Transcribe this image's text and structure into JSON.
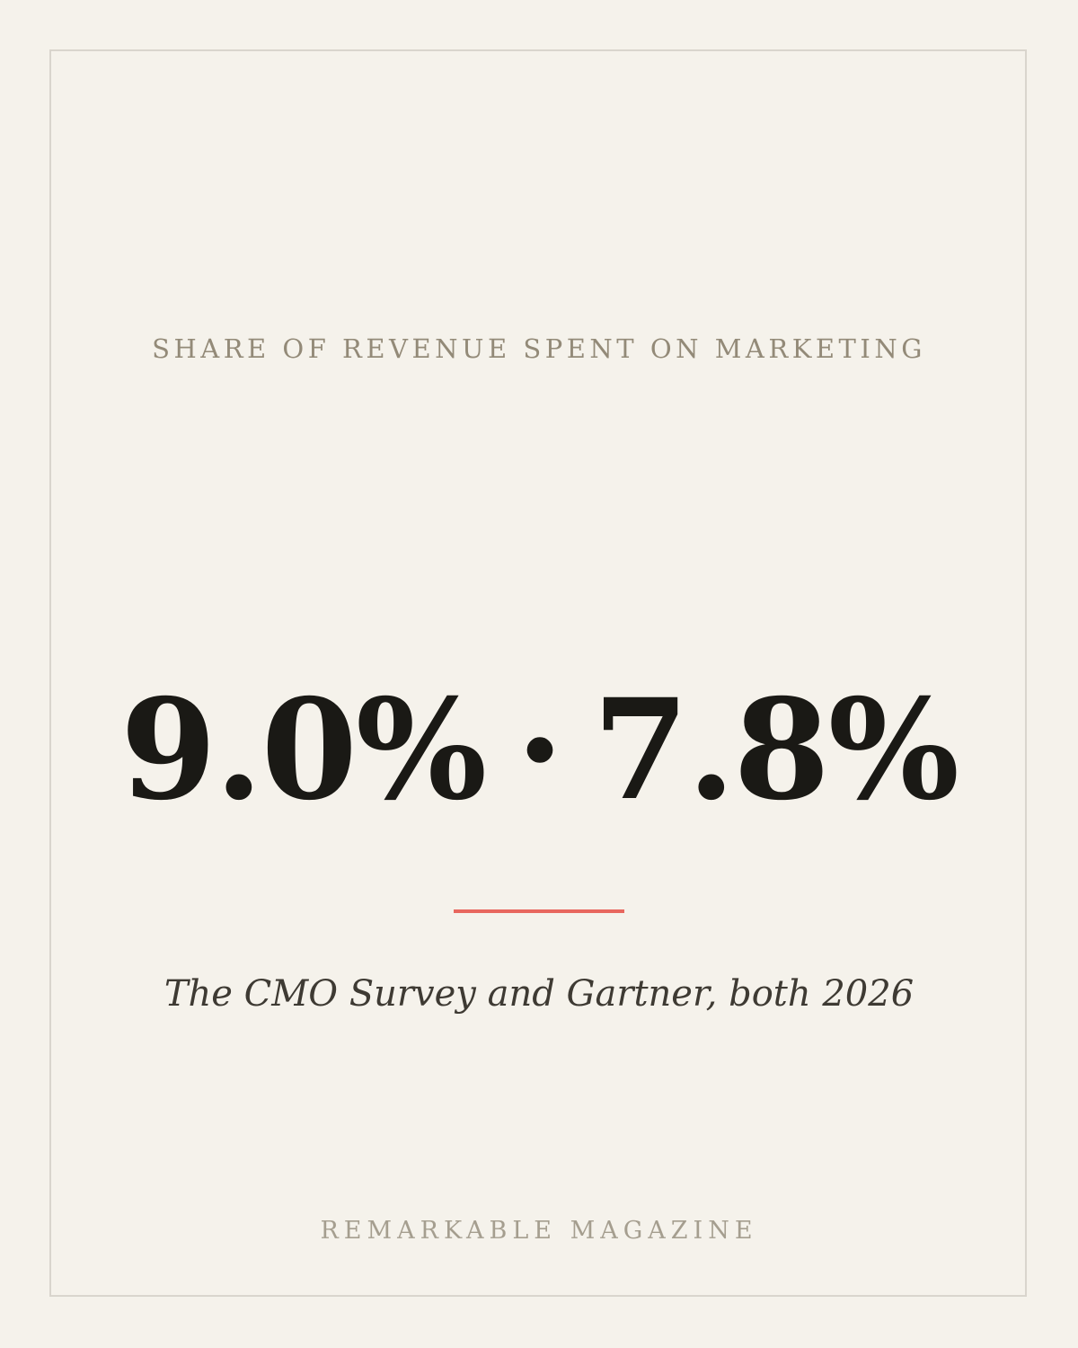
{
  "kicker": "SHARE OF REVENUE SPENT ON MARKETING",
  "headline": {
    "value_1": "9.0%",
    "separator": "·",
    "value_2": "7.8%"
  },
  "source": "The CMO Survey and Gartner, both 2026",
  "footer": "REMARKABLE MAGAZINE",
  "colors": {
    "background": "#f5f2eb",
    "frame": "#d9d5cd",
    "accent_rule": "#e8675e",
    "headline": "#1a1915",
    "kicker": "#938a78",
    "footer": "#a59e8f"
  }
}
